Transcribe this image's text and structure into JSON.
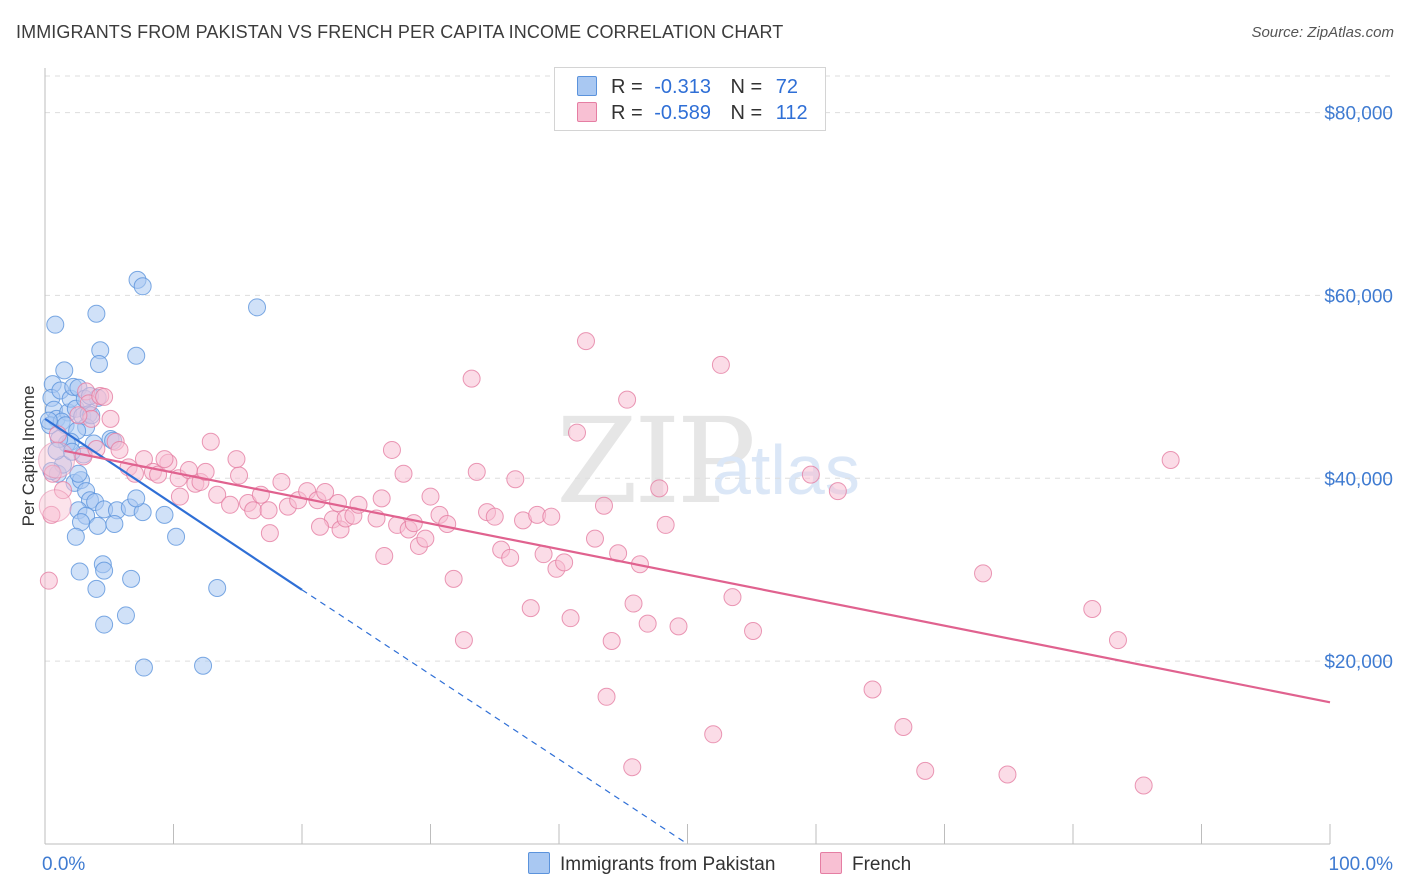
{
  "title": "IMMIGRANTS FROM PAKISTAN VS FRENCH PER CAPITA INCOME CORRELATION CHART",
  "source": "Source: ZipAtlas.com",
  "watermark": {
    "zip": "ZIP",
    "atlas": "atlas"
  },
  "legend": {
    "rows": [
      {
        "r_label": "R =",
        "r_value": "-0.313",
        "n_label": "N =",
        "n_value": "72"
      },
      {
        "r_label": "R =",
        "r_value": "-0.589",
        "n_label": "N =",
        "n_value": "112"
      }
    ]
  },
  "bottom_legend": {
    "pakistan": "Immigrants from Pakistan",
    "french": "French"
  },
  "colors": {
    "pakistan_fill": "#a9c8f2",
    "pakistan_stroke": "#5b93dc",
    "pakistan_line": "#2f6fd6",
    "french_fill": "#f8c0d3",
    "french_stroke": "#e57ea3",
    "french_line": "#e0628f",
    "axis_label": "#3f7bd1",
    "grid": "#dddddd"
  },
  "chart_data": {
    "type": "scatter",
    "title": "IMMIGRANTS FROM PAKISTAN VS FRENCH PER CAPITA INCOME CORRELATION CHART",
    "ylabel": "Per Capita Income",
    "xlabel": "",
    "xlim": [
      0,
      100
    ],
    "ylim": [
      0,
      84000
    ],
    "x_tick_labels": [
      {
        "x": 0,
        "label": "0.0%"
      },
      {
        "x": 100,
        "label": "100.0%"
      }
    ],
    "y_ticks": [
      {
        "y": 20000,
        "label": "$20,000"
      },
      {
        "y": 40000,
        "label": "$40,000"
      },
      {
        "y": 60000,
        "label": "$60,000"
      },
      {
        "y": 80000,
        "label": "$80,000"
      }
    ],
    "grid": true,
    "legend_position": "top-center",
    "series": [
      {
        "name": "Immigrants from Pakistan",
        "trend": {
          "x": [
            0,
            20
          ],
          "y": [
            46500,
            27800
          ],
          "dashed_to": [
            50,
            0
          ]
        },
        "points": [
          [
            0.8,
            56800
          ],
          [
            0.6,
            50300
          ],
          [
            0.5,
            48800
          ],
          [
            0.7,
            47500
          ],
          [
            0.9,
            46500
          ],
          [
            0.4,
            45800
          ],
          [
            1.2,
            49600
          ],
          [
            1.5,
            51800
          ],
          [
            1.8,
            47200
          ],
          [
            2.0,
            48700
          ],
          [
            2.2,
            50000
          ],
          [
            1.3,
            46200
          ],
          [
            1.6,
            45800
          ],
          [
            2.6,
            49900
          ],
          [
            2.4,
            47600
          ],
          [
            2.9,
            46800
          ],
          [
            3.1,
            48700
          ],
          [
            3.4,
            47000
          ],
          [
            3.2,
            45600
          ],
          [
            2.5,
            45200
          ],
          [
            3.0,
            42600
          ],
          [
            2.0,
            44000
          ],
          [
            1.7,
            43800
          ],
          [
            3.6,
            46900
          ],
          [
            4.1,
            48800
          ],
          [
            3.5,
            49000
          ],
          [
            4.3,
            54000
          ],
          [
            4.0,
            58000
          ],
          [
            4.2,
            52500
          ],
          [
            5.1,
            44300
          ],
          [
            5.3,
            44100
          ],
          [
            7.2,
            61700
          ],
          [
            7.6,
            61000
          ],
          [
            7.1,
            53400
          ],
          [
            16.5,
            58700
          ],
          [
            1.0,
            40500
          ],
          [
            2.3,
            39500
          ],
          [
            2.8,
            39800
          ],
          [
            2.6,
            40500
          ],
          [
            3.2,
            38600
          ],
          [
            3.5,
            37600
          ],
          [
            3.9,
            37400
          ],
          [
            2.6,
            36500
          ],
          [
            4.6,
            36600
          ],
          [
            5.6,
            36500
          ],
          [
            6.6,
            36800
          ],
          [
            7.6,
            36300
          ],
          [
            3.2,
            35900
          ],
          [
            2.8,
            35200
          ],
          [
            4.1,
            34800
          ],
          [
            5.4,
            35000
          ],
          [
            7.1,
            37800
          ],
          [
            9.3,
            36000
          ],
          [
            10.2,
            33600
          ],
          [
            2.4,
            33600
          ],
          [
            2.7,
            29800
          ],
          [
            4.5,
            30600
          ],
          [
            4.6,
            29900
          ],
          [
            6.7,
            29000
          ],
          [
            4.0,
            27900
          ],
          [
            13.4,
            28000
          ],
          [
            4.6,
            24000
          ],
          [
            6.3,
            25000
          ],
          [
            7.7,
            19300
          ],
          [
            12.3,
            19500
          ],
          [
            0.3,
            46300
          ],
          [
            1.1,
            44300
          ],
          [
            3.8,
            43800
          ],
          [
            1.4,
            41500
          ],
          [
            0.9,
            43000
          ],
          [
            2.1,
            42900
          ],
          [
            0.5,
            40800
          ]
        ]
      },
      {
        "name": "French",
        "trend": {
          "x": [
            1.5,
            100
          ],
          "y": [
            43000,
            15500
          ]
        },
        "points": [
          [
            0.3,
            28800
          ],
          [
            0.5,
            36000
          ],
          [
            0.6,
            40500
          ],
          [
            3.2,
            49500
          ],
          [
            3.4,
            48200
          ],
          [
            3.6,
            46500
          ],
          [
            4.3,
            49000
          ],
          [
            4.6,
            48900
          ],
          [
            5.1,
            46500
          ],
          [
            5.5,
            44000
          ],
          [
            5.8,
            43100
          ],
          [
            6.5,
            41200
          ],
          [
            7.0,
            40500
          ],
          [
            7.7,
            42100
          ],
          [
            8.4,
            40700
          ],
          [
            8.8,
            40400
          ],
          [
            9.6,
            41700
          ],
          [
            10.4,
            40000
          ],
          [
            11.2,
            40900
          ],
          [
            11.7,
            39400
          ],
          [
            12.1,
            39600
          ],
          [
            12.5,
            40700
          ],
          [
            13.4,
            38200
          ],
          [
            14.4,
            37100
          ],
          [
            15.1,
            40300
          ],
          [
            15.8,
            37300
          ],
          [
            16.2,
            36500
          ],
          [
            16.8,
            38200
          ],
          [
            17.4,
            36500
          ],
          [
            18.4,
            39600
          ],
          [
            18.9,
            36900
          ],
          [
            19.7,
            37600
          ],
          [
            20.4,
            38600
          ],
          [
            21.2,
            37600
          ],
          [
            21.8,
            38500
          ],
          [
            22.4,
            35500
          ],
          [
            23.0,
            34400
          ],
          [
            23.4,
            35600
          ],
          [
            24.0,
            35900
          ],
          [
            24.4,
            37100
          ],
          [
            25.8,
            35600
          ],
          [
            26.2,
            37800
          ],
          [
            27.0,
            43100
          ],
          [
            27.4,
            34900
          ],
          [
            27.9,
            40500
          ],
          [
            28.3,
            34400
          ],
          [
            28.7,
            35100
          ],
          [
            29.1,
            32600
          ],
          [
            29.6,
            33400
          ],
          [
            30.0,
            38000
          ],
          [
            30.7,
            36000
          ],
          [
            31.3,
            35000
          ],
          [
            31.8,
            29000
          ],
          [
            32.6,
            22300
          ],
          [
            33.2,
            50900
          ],
          [
            33.6,
            40700
          ],
          [
            34.4,
            36300
          ],
          [
            35.0,
            35800
          ],
          [
            35.5,
            32200
          ],
          [
            36.2,
            31300
          ],
          [
            36.6,
            39900
          ],
          [
            37.2,
            35400
          ],
          [
            37.8,
            25800
          ],
          [
            38.3,
            36000
          ],
          [
            38.8,
            31700
          ],
          [
            39.4,
            35800
          ],
          [
            39.8,
            30100
          ],
          [
            40.4,
            30800
          ],
          [
            40.9,
            24700
          ],
          [
            41.4,
            45000
          ],
          [
            42.1,
            55000
          ],
          [
            42.8,
            33400
          ],
          [
            43.5,
            37000
          ],
          [
            44.1,
            22200
          ],
          [
            44.6,
            31800
          ],
          [
            45.3,
            48600
          ],
          [
            45.8,
            26300
          ],
          [
            46.3,
            30600
          ],
          [
            46.9,
            24100
          ],
          [
            47.8,
            38900
          ],
          [
            48.3,
            34900
          ],
          [
            49.3,
            23800
          ],
          [
            52.6,
            52400
          ],
          [
            52.0,
            12000
          ],
          [
            53.5,
            27000
          ],
          [
            55.1,
            23300
          ],
          [
            59.6,
            40400
          ],
          [
            61.7,
            38600
          ],
          [
            64.4,
            16900
          ],
          [
            66.8,
            12800
          ],
          [
            68.5,
            8000
          ],
          [
            73.0,
            29600
          ],
          [
            74.9,
            7600
          ],
          [
            81.5,
            25700
          ],
          [
            83.5,
            22300
          ],
          [
            85.5,
            6400
          ],
          [
            87.6,
            42000
          ],
          [
            43.7,
            16100
          ],
          [
            45.7,
            8400
          ],
          [
            26.4,
            31500
          ],
          [
            22.8,
            37300
          ],
          [
            21.4,
            34700
          ],
          [
            9.3,
            42100
          ],
          [
            2.6,
            46900
          ],
          [
            3.0,
            42400
          ],
          [
            4.0,
            43200
          ],
          [
            1.0,
            44800
          ],
          [
            1.4,
            38700
          ],
          [
            17.5,
            34000
          ],
          [
            14.9,
            42100
          ],
          [
            12.9,
            44000
          ],
          [
            10.5,
            38000
          ]
        ]
      }
    ]
  }
}
